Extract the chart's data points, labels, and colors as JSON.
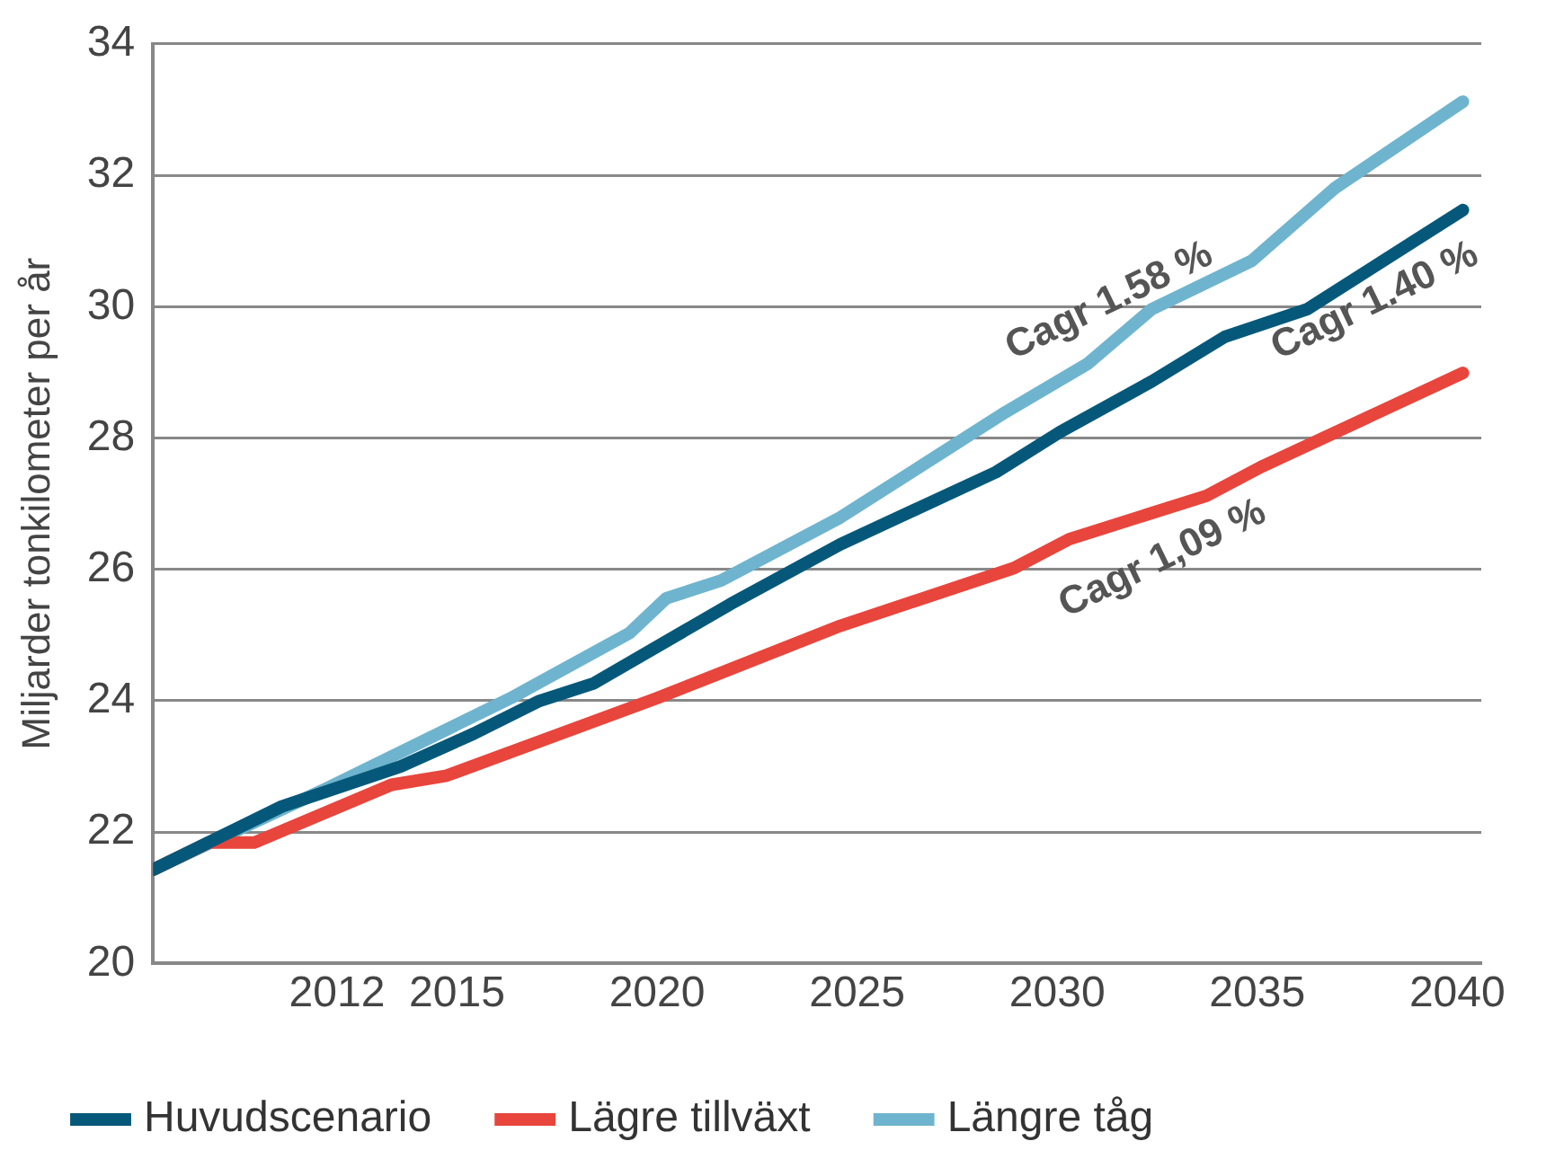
{
  "chart_data": {
    "type": "line",
    "ylabel": "Miljarder tonkilometer per år",
    "xlim": [
      2007.4,
      2040.6
    ],
    "xticks": [
      2012,
      2015,
      2020,
      2025,
      2030,
      2035,
      2040
    ],
    "ylim": [
      20,
      34
    ],
    "yticks": [
      20,
      22,
      24,
      26,
      28,
      30,
      32,
      34
    ],
    "grid": "y",
    "legend": "bottom",
    "marker": "none",
    "line_style": "solid",
    "series": [
      {
        "name": "Huvudscenario",
        "color": "#05587a",
        "x": [
          2007.41,
          2010.62,
          2013.59,
          2015.42,
          2017.03,
          2018.4,
          2021.83,
          2024.58,
          2028.47,
          2030.07,
          2032.36,
          2034.19,
          2036.25,
          2040.14
        ],
        "values": [
          21.43,
          22.39,
          23.0,
          23.5,
          23.99,
          24.26,
          25.47,
          26.38,
          27.48,
          28.09,
          28.86,
          29.54,
          29.96,
          31.47
        ]
      },
      {
        "name": "Lägre tillväxt",
        "color": "#e8453c",
        "x": [
          2007.41,
          2008.79,
          2009.93,
          2013.36,
          2014.74,
          2020.0,
          2024.58,
          2028.92,
          2030.3,
          2033.73,
          2035.1,
          2040.14
        ],
        "values": [
          21.43,
          21.84,
          21.84,
          22.72,
          22.86,
          24.04,
          25.14,
          26.02,
          26.46,
          27.12,
          27.56,
          28.99
        ]
      },
      {
        "name": "Längre tåg",
        "color": "#6fb4ce",
        "x": [
          2007.41,
          2011.76,
          2016.34,
          2019.31,
          2020.23,
          2021.6,
          2024.58,
          2028.7,
          2030.76,
          2032.36,
          2034.87,
          2036.93,
          2040.14
        ],
        "values": [
          21.43,
          22.67,
          24.04,
          25.03,
          25.56,
          25.83,
          26.79,
          28.39,
          29.13,
          29.96,
          30.7,
          31.8,
          33.12
        ]
      }
    ],
    "annotations": [
      "Cagr 1.58 %",
      "Cagr 1.40 %",
      "Cagr 1,09 %"
    ]
  }
}
